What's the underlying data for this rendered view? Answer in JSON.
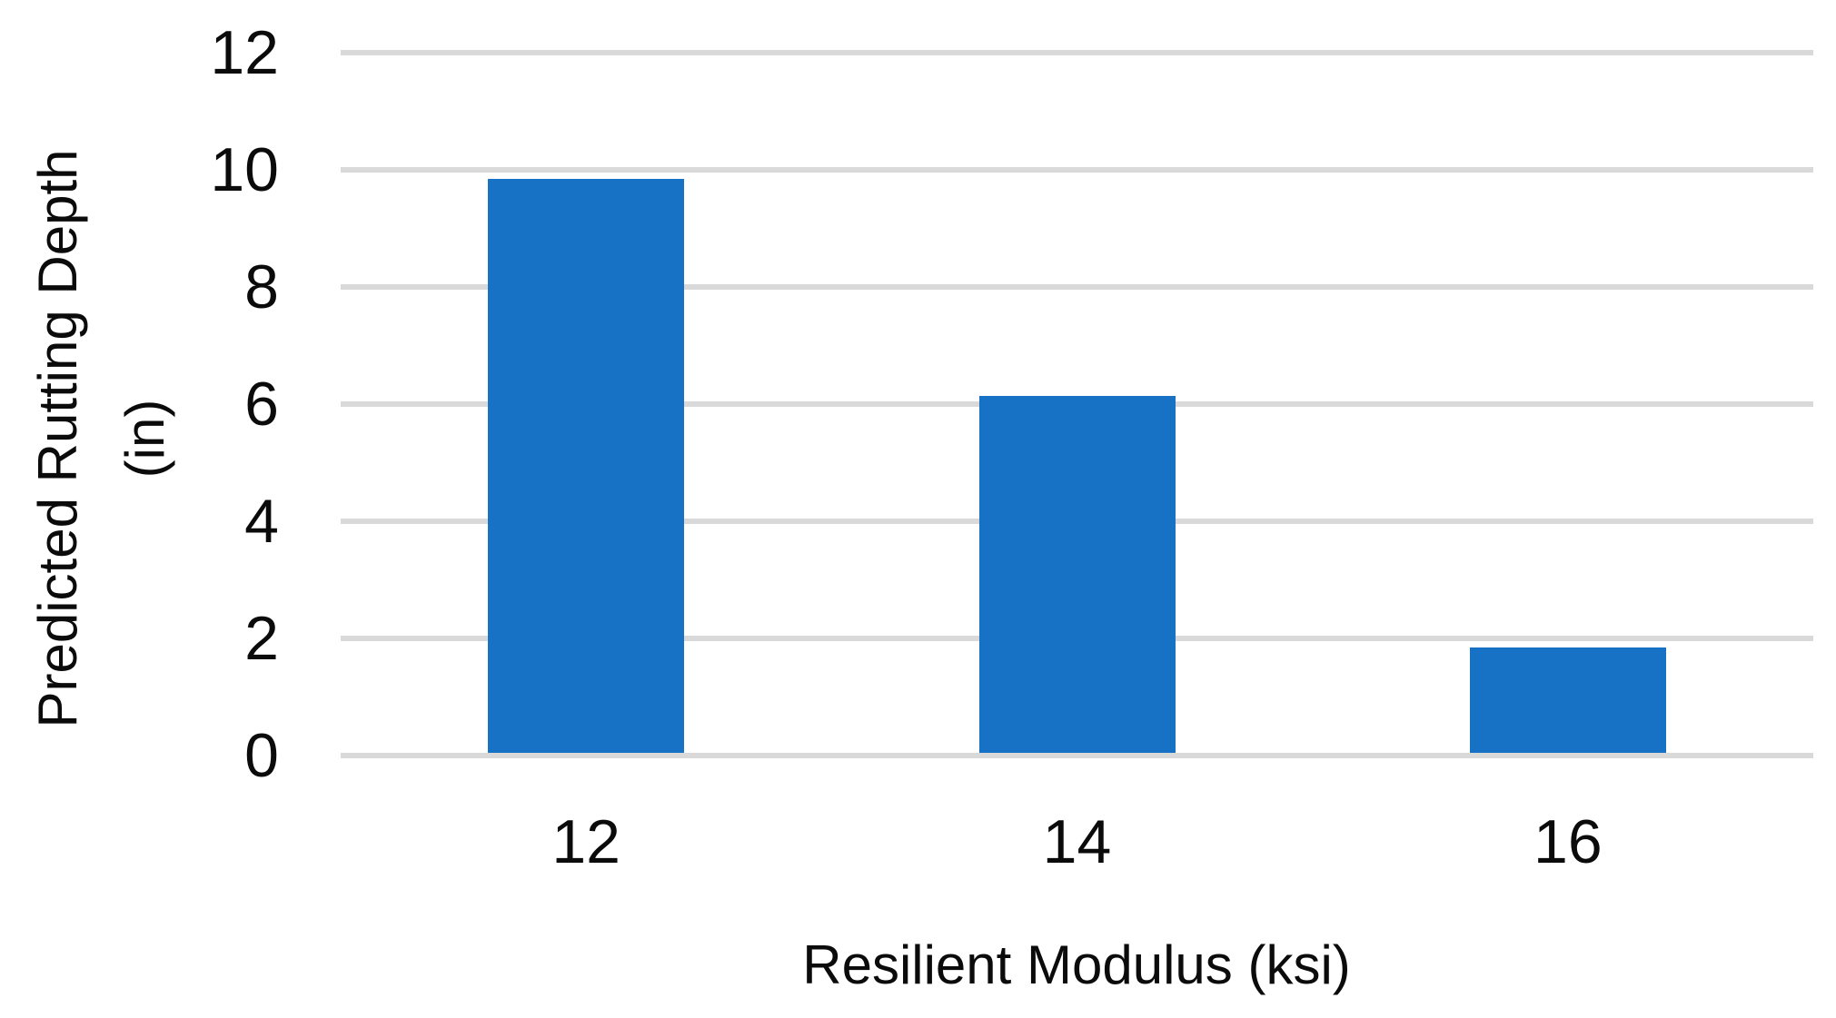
{
  "chart_data": {
    "type": "bar",
    "title": "",
    "categories": [
      "12",
      "14",
      "16"
    ],
    "values": [
      9.8,
      6.1,
      1.8
    ],
    "xlabel": "Resilient Modulus (ksi)",
    "ylabel_lines": [
      "Predicted Rutting Depth",
      "(in)"
    ],
    "ylim": [
      0,
      12
    ],
    "yticks": [
      0,
      2,
      4,
      6,
      8,
      10,
      12
    ],
    "grid": true,
    "legend_position": "none",
    "bar_color": "#1772C6",
    "gridline_color": "#D9D9D9",
    "text_color": "#0b0b0b"
  }
}
